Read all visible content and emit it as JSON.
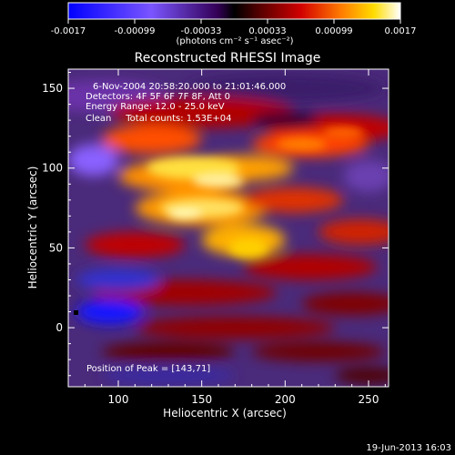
{
  "chart_data": {
    "type": "heatmap",
    "title": "Reconstructed RHESSI Image",
    "xlabel": "Heliocentric X (arcsec)",
    "ylabel": "Heliocentric Y (arcsec)",
    "xlim": [
      70,
      262
    ],
    "ylim": [
      -37,
      162
    ],
    "x_ticks": [
      100,
      150,
      200,
      250
    ],
    "y_ticks": [
      0,
      50,
      100,
      150
    ],
    "colorbar": {
      "ticks": [
        "-0.0017",
        "-0.00099",
        "-0.00033",
        "0.00033",
        "0.00099",
        "0.0017"
      ],
      "unit": "(photons cm⁻² s⁻¹ asec⁻²)",
      "range": [
        -0.0017,
        0.0017
      ]
    },
    "info": [
      "6-Nov-2004 20:58:20.000 to 21:01:46.000",
      "Detectors: 4F 5F 6F 7F 8F, Att 0",
      "Energy Range: 12.0 - 25.0 keV",
      "Clean     Total counts: 1.53E+04"
    ],
    "peak_text": "Position of Peak = [143,71]",
    "footer_date": "19-Jun-2013 16:03",
    "grid": false
  }
}
